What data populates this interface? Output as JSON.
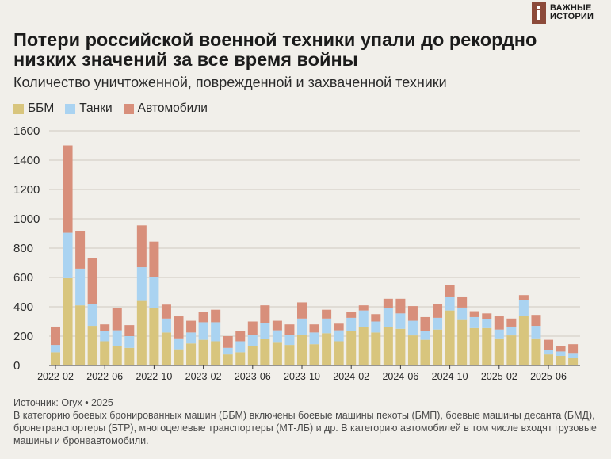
{
  "brand": {
    "line1": "ВАЖНЫЕ",
    "line2": "ИСТОРИИ",
    "icon_letter": "i"
  },
  "title": "Потери российской военной техники упали до рекордно низких значений за все время войны",
  "subtitle": "Количество уничтоженной, поврежденной и захваченной техники",
  "colors": {
    "ifv": "#d8c57d",
    "tanks": "#aad3f1",
    "vehicles": "#d88f7b",
    "brand": "#8c4a3a"
  },
  "chart_data": {
    "type": "bar",
    "stacked": true,
    "ylim": [
      0,
      1600
    ],
    "yticks": [
      0,
      200,
      400,
      600,
      800,
      1000,
      1200,
      1400,
      1600
    ],
    "xtick_labels": [
      "2022-02",
      "2022-06",
      "2022-10",
      "2023-02",
      "2023-06",
      "2023-10",
      "2024-02",
      "2024-06",
      "2024-10",
      "2025-02",
      "2025-06"
    ],
    "categories": [
      "2022-02",
      "2022-03",
      "2022-04",
      "2022-05",
      "2022-06",
      "2022-07",
      "2022-08",
      "2022-09",
      "2022-10",
      "2022-11",
      "2022-12",
      "2023-01",
      "2023-02",
      "2023-03",
      "2023-04",
      "2023-05",
      "2023-06",
      "2023-07",
      "2023-08",
      "2023-09",
      "2023-10",
      "2023-11",
      "2023-12",
      "2024-01",
      "2024-02",
      "2024-03",
      "2024-04",
      "2024-05",
      "2024-06",
      "2024-07",
      "2024-08",
      "2024-09",
      "2024-10",
      "2024-11",
      "2024-12",
      "2025-01",
      "2025-02",
      "2025-03",
      "2025-04",
      "2025-05",
      "2025-06",
      "2025-07",
      "2025-08"
    ],
    "series": [
      {
        "name": "ББМ",
        "values": [
          90,
          595,
          410,
          270,
          165,
          130,
          120,
          440,
          390,
          225,
          110,
          150,
          175,
          165,
          75,
          90,
          130,
          180,
          155,
          140,
          210,
          145,
          220,
          165,
          235,
          260,
          225,
          260,
          250,
          205,
          175,
          245,
          375,
          310,
          255,
          255,
          185,
          205,
          340,
          185,
          75,
          65,
          50
        ]
      },
      {
        "name": "Танки",
        "values": [
          50,
          310,
          250,
          150,
          70,
          110,
          80,
          230,
          210,
          95,
          75,
          75,
          120,
          130,
          45,
          75,
          80,
          110,
          85,
          70,
          110,
          80,
          100,
          75,
          90,
          115,
          75,
          130,
          105,
          100,
          60,
          80,
          90,
          85,
          75,
          60,
          60,
          60,
          105,
          85,
          30,
          30,
          35
        ]
      },
      {
        "name": "Автомобили",
        "values": [
          125,
          595,
          255,
          315,
          45,
          150,
          75,
          285,
          245,
          95,
          150,
          80,
          70,
          85,
          80,
          70,
          90,
          120,
          65,
          70,
          110,
          55,
          60,
          45,
          40,
          35,
          50,
          65,
          100,
          100,
          95,
          95,
          85,
          70,
          40,
          40,
          90,
          55,
          35,
          75,
          70,
          40,
          60
        ]
      }
    ]
  },
  "source": {
    "label": "Источник:",
    "name": "Oryx",
    "year": "• 2025"
  },
  "note": "В категорию боевых бронированных машин (ББМ) включены боевые машины пехоты (БМП), боевые машины десанта (БМД), бронетранспортеры (БТР), многоцелевые транспортеры (МТ-ЛБ) и др. В категорию автомобилей в том числе входят грузовые машины и бронеавтомобили."
}
